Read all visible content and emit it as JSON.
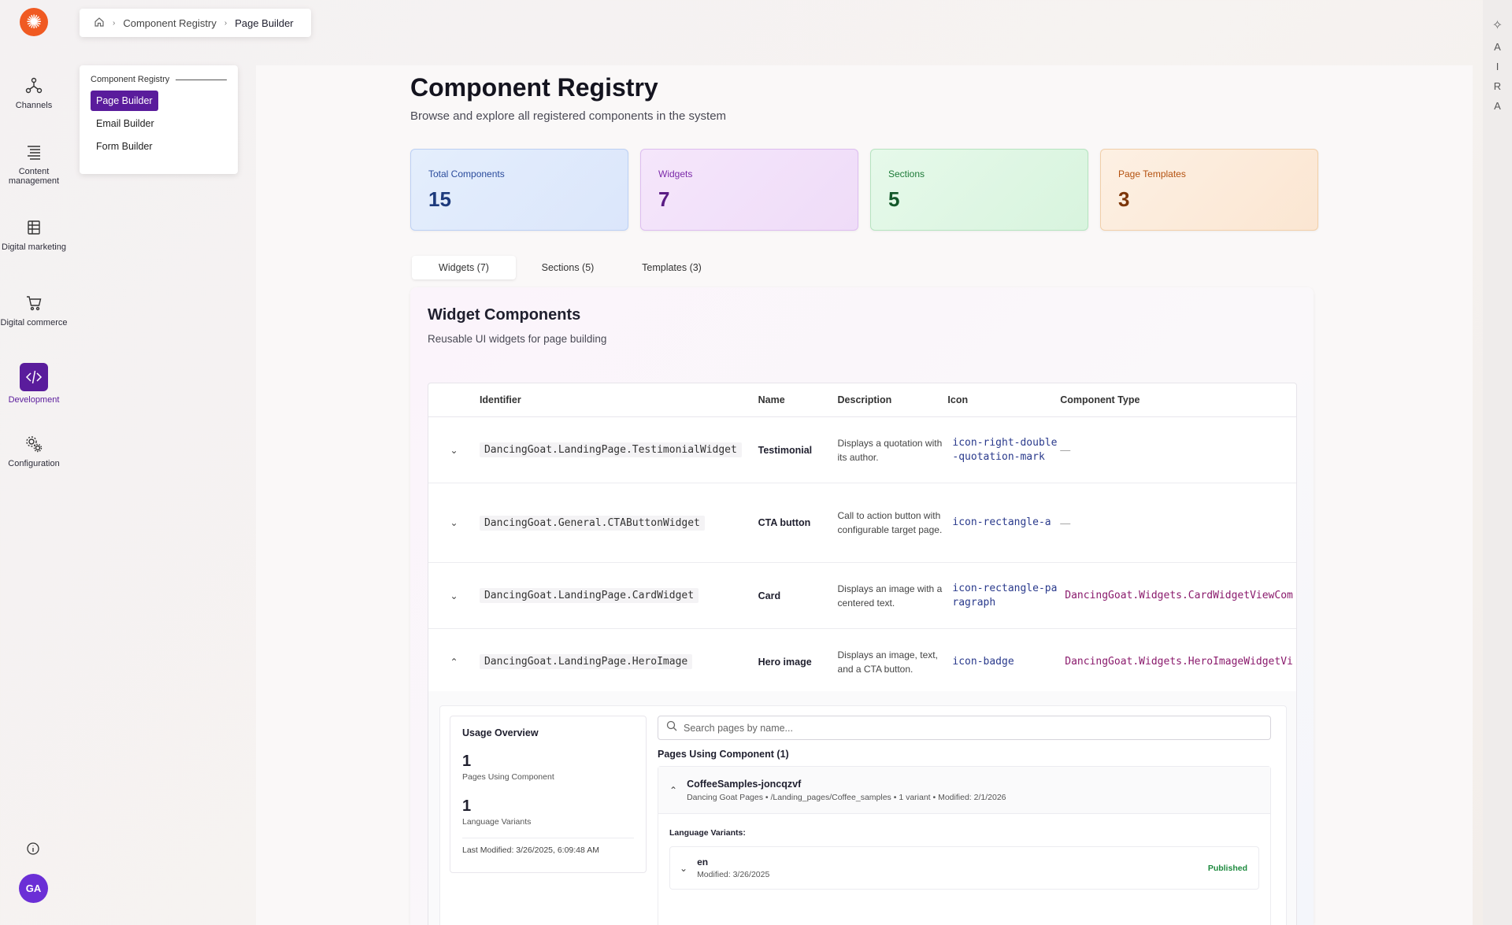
{
  "rail": {
    "items": [
      {
        "label": "Channels",
        "icon": "channels-icon"
      },
      {
        "label": "Content management",
        "icon": "content-icon"
      },
      {
        "label": "Digital marketing",
        "icon": "marketing-icon"
      },
      {
        "label": "Digital commerce",
        "icon": "cart-icon"
      },
      {
        "label": "Development",
        "icon": "code-icon"
      },
      {
        "label": "Configuration",
        "icon": "gear-icon"
      }
    ],
    "avatar": "GA"
  },
  "breadcrumb": {
    "items": [
      "Component Registry",
      "Page Builder"
    ]
  },
  "submenu": {
    "title": "Component Registry",
    "items": [
      "Page Builder",
      "Email Builder",
      "Form Builder"
    ]
  },
  "right_rail": {
    "letters": [
      "A",
      "I",
      "R",
      "A"
    ]
  },
  "header": {
    "title": "Component Registry",
    "subtitle": "Browse and explore all registered components in the system"
  },
  "stats": [
    {
      "label": "Total Components",
      "value": "15"
    },
    {
      "label": "Widgets",
      "value": "7"
    },
    {
      "label": "Sections",
      "value": "5"
    },
    {
      "label": "Page Templates",
      "value": "3"
    }
  ],
  "tabs": [
    "Widgets (7)",
    "Sections (5)",
    "Templates (3)"
  ],
  "widgets": {
    "title": "Widget Components",
    "subtitle": "Reusable UI widgets for page building",
    "columns": [
      "Identifier",
      "Name",
      "Description",
      "Icon",
      "Component Type"
    ],
    "rows": [
      {
        "identifier": "DancingGoat.LandingPage.TestimonialWidget",
        "name": "Testimonial",
        "description": "Displays a quotation with its author.",
        "icon": "icon-right-double-quotation-mark",
        "type": "—"
      },
      {
        "identifier": "DancingGoat.General.CTAButtonWidget",
        "name": "CTA button",
        "description": "Call to action button with configurable target page.",
        "icon": "icon-rectangle-a",
        "type": "—"
      },
      {
        "identifier": "DancingGoat.LandingPage.CardWidget",
        "name": "Card",
        "description": "Displays an image with a centered text.",
        "icon": "icon-rectangle-paragraph",
        "type": "DancingGoat.Widgets.CardWidgetViewCom"
      },
      {
        "identifier": "DancingGoat.LandingPage.HeroImage",
        "name": "Hero image",
        "description": "Displays an image, text, and a CTA button.",
        "icon": "icon-badge",
        "type": "DancingGoat.Widgets.HeroImageWidgetVi"
      }
    ]
  },
  "usage": {
    "title": "Usage Overview",
    "pages_count": "1",
    "pages_label": "Pages Using Component",
    "variants_count": "1",
    "variants_label": "Language Variants",
    "last_modified": "Last Modified: 3/26/2025, 6:09:48 AM"
  },
  "search": {
    "placeholder": "Search pages by name..."
  },
  "pages": {
    "title": "Pages Using Component (1)",
    "items": [
      {
        "name": "CoffeeSamples-joncqzvf",
        "meta": "Dancing Goat Pages • /Landing_pages/Coffee_samples • 1 variant • Modified: 2/1/2026",
        "variants_title": "Language Variants:",
        "variants": [
          {
            "code": "en",
            "modified": "Modified: 3/26/2025",
            "status": "Published"
          }
        ]
      }
    ]
  }
}
